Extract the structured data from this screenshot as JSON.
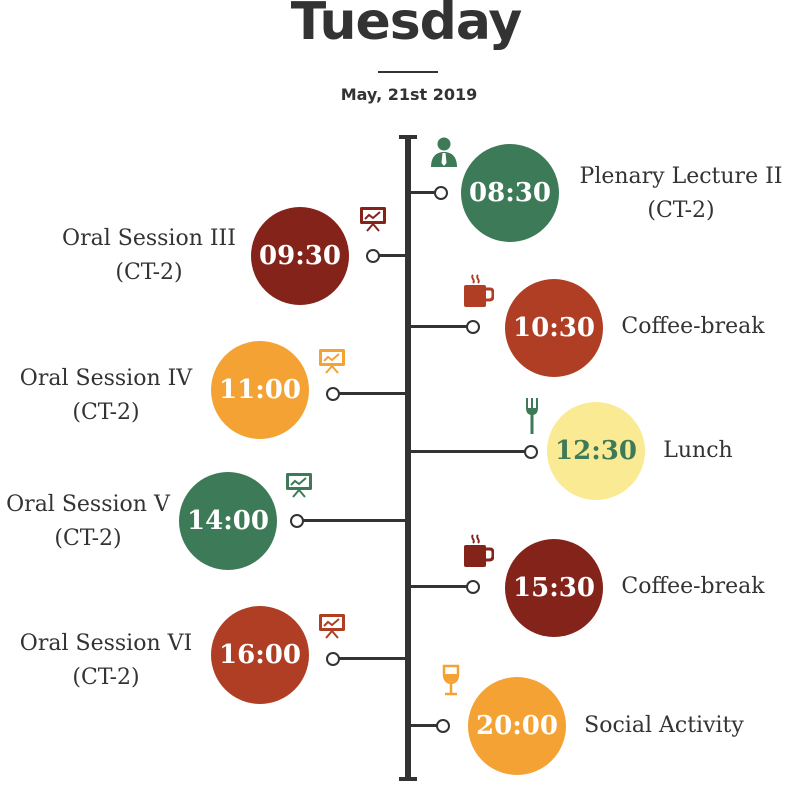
{
  "header": {
    "title": "Tuesday",
    "date": "May, 21st 2019"
  },
  "colors": {
    "green": "#3d7a58",
    "dark_red": "#84231a",
    "rust": "#b03e24",
    "orange": "#f4a233",
    "yellow": "#f9ea93"
  },
  "events": [
    {
      "time": "08:30",
      "title": "Plenary Lecture II",
      "location": "(CT-2)",
      "side": "right",
      "color": "#3d7a58",
      "time_color": "#ffffff",
      "icon": "lecturer-icon"
    },
    {
      "time": "09:30",
      "title": "Oral Session III",
      "location": "(CT-2)",
      "side": "left",
      "color": "#84231a",
      "time_color": "#ffffff",
      "icon": "presentation-board-icon"
    },
    {
      "time": "10:30",
      "title": "Coffee-break",
      "location": "",
      "side": "right",
      "color": "#b03e24",
      "time_color": "#ffffff",
      "icon": "coffee-cup-icon"
    },
    {
      "time": "11:00",
      "title": "Oral Session IV",
      "location": "(CT-2)",
      "side": "left",
      "color": "#f4a233",
      "time_color": "#ffffff",
      "icon": "presentation-board-icon"
    },
    {
      "time": "12:30",
      "title": "Lunch",
      "location": "",
      "side": "right",
      "color": "#f9ea93",
      "time_color": "#3d7a58",
      "icon": "fork-icon"
    },
    {
      "time": "14:00",
      "title": "Oral Session V",
      "location": "(CT-2)",
      "side": "left",
      "color": "#3d7a58",
      "time_color": "#ffffff",
      "icon": "presentation-board-icon"
    },
    {
      "time": "15:30",
      "title": "Coffee-break",
      "location": "",
      "side": "right",
      "color": "#84231a",
      "time_color": "#ffffff",
      "icon": "coffee-cup-icon"
    },
    {
      "time": "16:00",
      "title": "Oral Session VI",
      "location": "(CT-2)",
      "side": "left",
      "color": "#b03e24",
      "time_color": "#ffffff",
      "icon": "presentation-board-icon"
    },
    {
      "time": "20:00",
      "title": "Social Activity",
      "location": "",
      "side": "right",
      "color": "#f4a233",
      "time_color": "#ffffff",
      "icon": "wine-glass-icon"
    }
  ]
}
